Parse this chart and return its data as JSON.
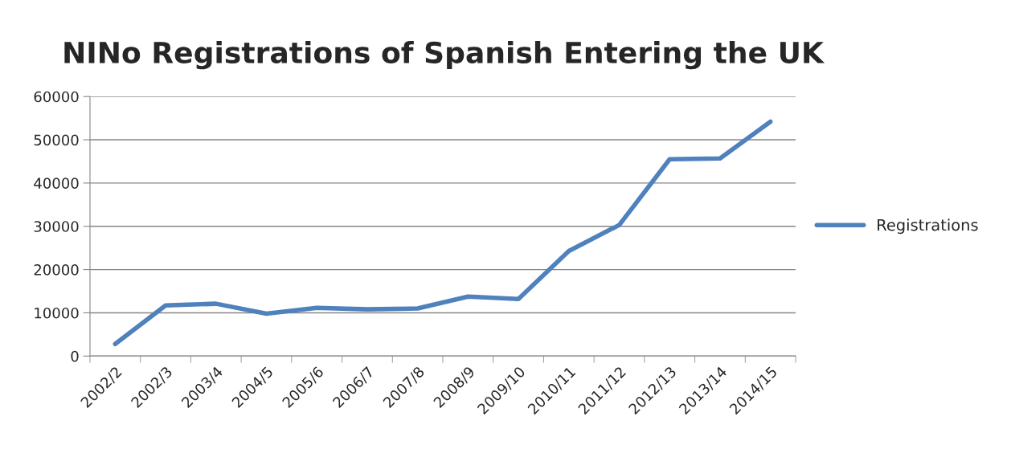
{
  "chart_data": {
    "type": "line",
    "title": "NINo Registrations of Spanish Entering the UK",
    "categories": [
      "2002/2",
      "2002/3",
      "2003/4",
      "2004/5",
      "2005/6",
      "2006/7",
      "2007/8",
      "2008/9",
      "2009/10",
      "2010/11",
      "2011/12",
      "2012/13",
      "2013/14",
      "2014/15"
    ],
    "series": [
      {
        "name": "Registrations",
        "color": "#4f81bd",
        "values": [
          2800,
          11700,
          12100,
          9800,
          11150,
          10800,
          11000,
          13750,
          13200,
          24300,
          30300,
          45500,
          45700,
          54200
        ]
      }
    ],
    "ylim": [
      0,
      60000
    ],
    "yticks": [
      0,
      10000,
      20000,
      30000,
      40000,
      50000,
      60000
    ],
    "grid": "y",
    "legend": "right",
    "marker": "none",
    "line_style": "solid"
  }
}
